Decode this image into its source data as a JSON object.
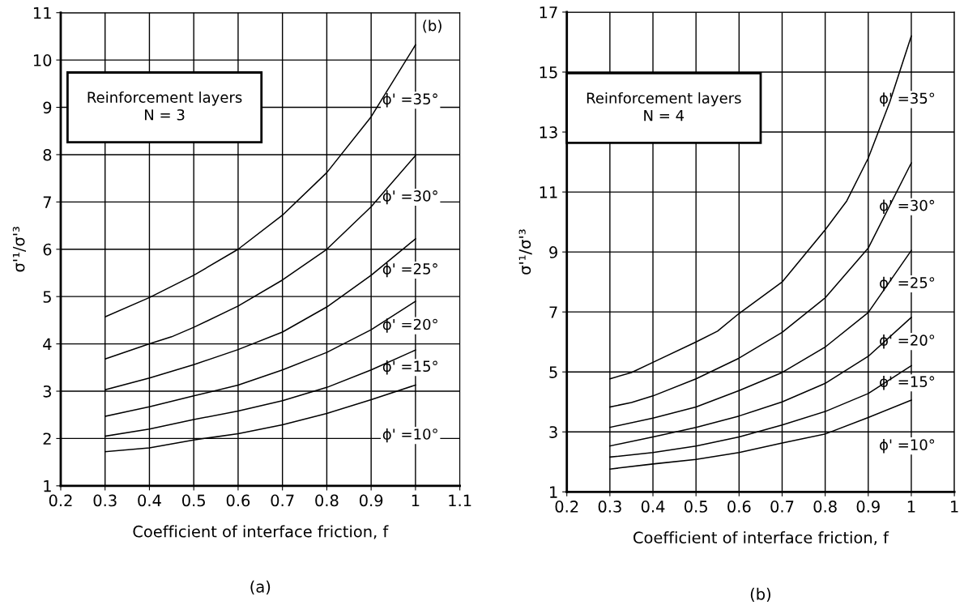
{
  "chart_data": [
    {
      "type": "line",
      "xlabel": "Coefficient of interface friction, f",
      "ylabel": "σ'¹/σ'³",
      "xlim": [
        0.2,
        1.1
      ],
      "xticks": [
        0.2,
        0.3,
        0.4,
        0.5,
        0.6,
        0.7,
        0.8,
        0.9,
        1,
        1.1
      ],
      "ylim": [
        1,
        11
      ],
      "yticks": [
        1,
        2,
        3,
        4,
        5,
        6,
        7,
        8,
        9,
        10,
        11
      ],
      "grid": true,
      "legend": false,
      "marker": "none",
      "line_style": "solid",
      "annotations": [
        "Reinforcement layers\nN = 3",
        "(b)",
        "(a)"
      ],
      "series": [
        {
          "name": "ϕ' =35°",
          "color": "#000000",
          "x": [
            0.3,
            0.4,
            0.5,
            0.6,
            0.7,
            0.8,
            0.9,
            1.0
          ],
          "values": [
            4.57,
            4.98,
            5.45,
            6.0,
            6.72,
            7.62,
            8.8,
            10.32
          ]
        },
        {
          "name": "ϕ' =30°",
          "color": "#000000",
          "x": [
            0.3,
            0.4,
            0.45,
            0.5,
            0.6,
            0.7,
            0.8,
            0.9,
            1.0
          ],
          "values": [
            3.68,
            4.0,
            4.15,
            4.35,
            4.8,
            5.35,
            6.0,
            6.9,
            7.98
          ]
        },
        {
          "name": "ϕ' =25°",
          "color": "#000000",
          "x": [
            0.3,
            0.4,
            0.5,
            0.6,
            0.7,
            0.8,
            0.9,
            1.0
          ],
          "values": [
            3.03,
            3.28,
            3.56,
            3.88,
            4.25,
            4.78,
            5.45,
            6.22
          ]
        },
        {
          "name": "ϕ' =20°",
          "color": "#000000",
          "x": [
            0.3,
            0.4,
            0.5,
            0.6,
            0.7,
            0.8,
            0.9,
            1.0
          ],
          "values": [
            2.47,
            2.67,
            2.9,
            3.13,
            3.45,
            3.82,
            4.3,
            4.9
          ]
        },
        {
          "name": "ϕ' =15°",
          "color": "#000000",
          "x": [
            0.3,
            0.4,
            0.5,
            0.6,
            0.7,
            0.8,
            0.9,
            1.0
          ],
          "values": [
            2.05,
            2.2,
            2.4,
            2.58,
            2.8,
            3.08,
            3.45,
            3.87
          ]
        },
        {
          "name": "ϕ' =10°",
          "color": "#000000",
          "x": [
            0.3,
            0.4,
            0.5,
            0.6,
            0.7,
            0.8,
            0.9,
            1.0
          ],
          "values": [
            1.72,
            1.8,
            1.97,
            2.1,
            2.29,
            2.53,
            2.82,
            3.13
          ]
        }
      ]
    },
    {
      "type": "line",
      "xlabel": "Coefficient of interface friction, f",
      "ylabel": "σ'¹/σ'³",
      "xlim": [
        0.2,
        1.1
      ],
      "xticks": [
        0.2,
        0.3,
        0.4,
        0.5,
        0.6,
        0.7,
        0.8,
        0.9,
        1,
        {
          "value": 1.1,
          "label": "1"
        }
      ],
      "ylim": [
        1,
        17
      ],
      "yticks": [
        1,
        3,
        5,
        7,
        9,
        11,
        13,
        15,
        17
      ],
      "grid": true,
      "legend": false,
      "marker": "none",
      "line_style": "solid",
      "annotations": [
        "Reinforcement layers\nN = 4",
        "(b)"
      ],
      "series": [
        {
          "name": "ϕ' =35°",
          "color": "#000000",
          "x": [
            0.3,
            0.35,
            0.4,
            0.5,
            0.55,
            0.6,
            0.7,
            0.8,
            0.85,
            0.9,
            0.95,
            1.0
          ],
          "values": [
            4.77,
            4.98,
            5.32,
            6.0,
            6.36,
            6.95,
            8.0,
            9.74,
            10.7,
            12.13,
            14.0,
            16.2
          ]
        },
        {
          "name": "ϕ' =30°",
          "color": "#000000",
          "x": [
            0.3,
            0.35,
            0.4,
            0.5,
            0.6,
            0.7,
            0.8,
            0.9,
            1.0
          ],
          "values": [
            3.83,
            3.98,
            4.2,
            4.77,
            5.46,
            6.32,
            7.47,
            9.13,
            11.97
          ]
        },
        {
          "name": "ϕ' =25°",
          "color": "#000000",
          "x": [
            0.3,
            0.4,
            0.5,
            0.6,
            0.7,
            0.8,
            0.9,
            1.0
          ],
          "values": [
            3.15,
            3.46,
            3.83,
            4.38,
            4.98,
            5.83,
            6.98,
            9.05
          ]
        },
        {
          "name": "ϕ' =20°",
          "color": "#000000",
          "x": [
            0.3,
            0.4,
            0.5,
            0.6,
            0.7,
            0.8,
            0.9,
            1.0
          ],
          "values": [
            2.53,
            2.83,
            3.15,
            3.53,
            4.0,
            4.62,
            5.52,
            6.82
          ]
        },
        {
          "name": "ϕ' =15°",
          "color": "#000000",
          "x": [
            0.3,
            0.4,
            0.5,
            0.6,
            0.7,
            0.8,
            0.9,
            1.0
          ],
          "values": [
            2.16,
            2.31,
            2.53,
            2.83,
            3.23,
            3.68,
            4.28,
            5.21
          ]
        },
        {
          "name": "ϕ' =10°",
          "color": "#000000",
          "x": [
            0.3,
            0.4,
            0.5,
            0.6,
            0.7,
            0.8,
            0.9,
            1.0
          ],
          "values": [
            1.76,
            1.93,
            2.08,
            2.31,
            2.63,
            2.93,
            3.48,
            4.06
          ]
        }
      ]
    }
  ]
}
